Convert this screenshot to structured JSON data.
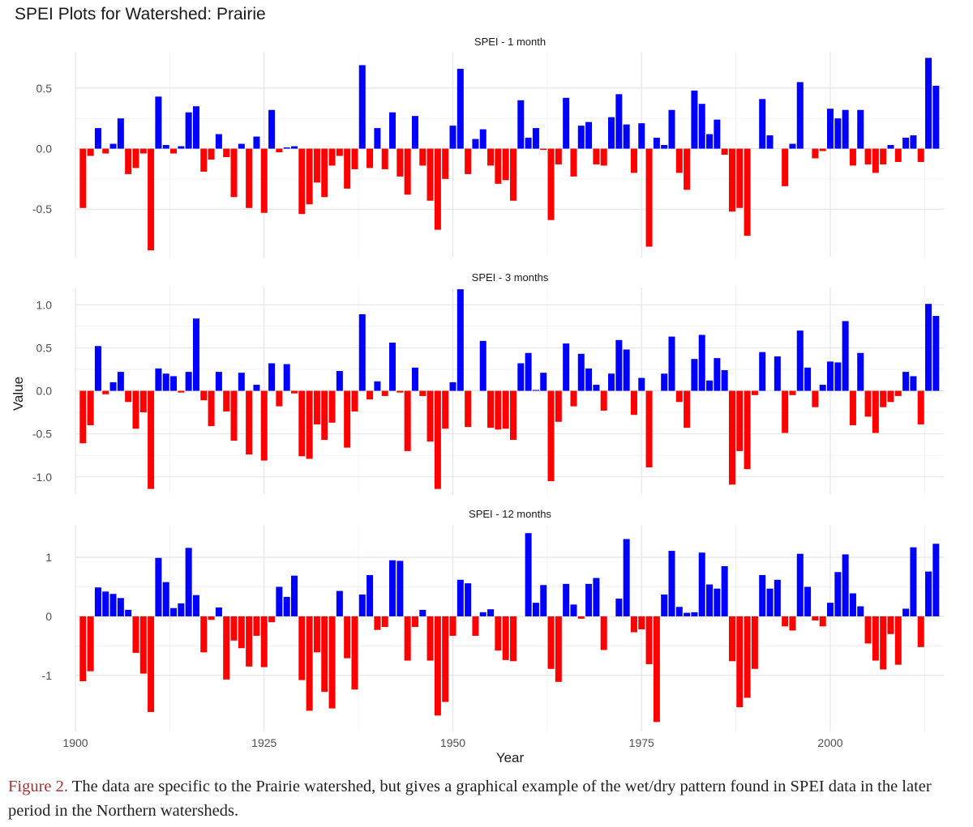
{
  "figure": {
    "title": "SPEI Plots for Watershed: Prairie",
    "ylabel": "Value",
    "xlabel": "Year",
    "x_ticks": [
      "1900",
      "1925",
      "1950",
      "1975",
      "2000"
    ],
    "positive_color": "#0000ff",
    "negative_color": "#ff0000"
  },
  "chart_data": [
    {
      "type": "bar",
      "title": "SPEI - 1 month",
      "xlabel": "Year",
      "ylabel": "Value",
      "ylim": [
        -0.9,
        0.8
      ],
      "y_ticks": [
        "0.5",
        "0.0",
        "-0.5"
      ],
      "y_tick_values": [
        0.5,
        0.0,
        -0.5
      ],
      "years_start": 1901,
      "values": [
        -0.49,
        -0.06,
        0.17,
        -0.04,
        0.04,
        0.25,
        -0.21,
        -0.16,
        -0.04,
        -0.84,
        0.43,
        0.03,
        -0.04,
        0.02,
        0.3,
        0.35,
        -0.19,
        -0.09,
        0.12,
        -0.07,
        -0.4,
        0.04,
        -0.49,
        0.1,
        -0.53,
        0.32,
        -0.03,
        0.01,
        0.02,
        -0.54,
        -0.46,
        -0.28,
        -0.4,
        -0.14,
        -0.06,
        -0.33,
        -0.17,
        0.69,
        -0.16,
        0.17,
        -0.17,
        0.3,
        -0.23,
        -0.38,
        0.27,
        -0.14,
        -0.43,
        -0.67,
        -0.25,
        0.19,
        0.66,
        -0.21,
        0.08,
        0.16,
        -0.14,
        -0.29,
        -0.26,
        -0.43,
        0.4,
        0.09,
        0.17,
        -0.01,
        -0.59,
        -0.13,
        0.42,
        -0.23,
        0.19,
        0.22,
        -0.13,
        -0.14,
        0.26,
        0.45,
        0.2,
        -0.2,
        0.21,
        -0.81,
        0.09,
        0.03,
        0.32,
        -0.2,
        -0.34,
        0.48,
        0.37,
        0.12,
        0.24,
        -0.05,
        -0.52,
        -0.49,
        -0.72,
        0.0,
        0.41,
        0.11,
        0.0,
        -0.31,
        0.04,
        0.55,
        0.0,
        -0.08,
        -0.02,
        0.33,
        0.25,
        0.32,
        -0.14,
        0.32,
        -0.13,
        -0.2,
        -0.13,
        0.03,
        -0.11,
        0.09,
        0.11,
        -0.11,
        0.75,
        0.52
      ]
    },
    {
      "type": "bar",
      "title": "SPEI - 3 months",
      "xlabel": "Year",
      "ylabel": "Value",
      "ylim": [
        -1.2,
        1.2
      ],
      "y_ticks": [
        "1.0",
        "0.5",
        "0.0",
        "-0.5",
        "-1.0"
      ],
      "y_tick_values": [
        1.0,
        0.5,
        0.0,
        -0.5,
        -1.0
      ],
      "years_start": 1901,
      "values": [
        -0.61,
        -0.4,
        0.52,
        -0.04,
        0.1,
        0.22,
        -0.13,
        -0.44,
        -0.25,
        -1.14,
        0.26,
        0.2,
        0.17,
        -0.02,
        0.22,
        0.84,
        -0.11,
        -0.41,
        0.22,
        -0.24,
        -0.58,
        0.21,
        -0.74,
        0.07,
        -0.81,
        0.32,
        -0.18,
        0.31,
        -0.03,
        -0.76,
        -0.79,
        -0.39,
        -0.57,
        -0.37,
        0.23,
        -0.66,
        -0.24,
        0.89,
        -0.1,
        0.11,
        -0.06,
        0.56,
        -0.02,
        -0.7,
        0.27,
        -0.06,
        -0.59,
        -1.14,
        -0.44,
        0.1,
        1.18,
        -0.42,
        0.0,
        0.58,
        -0.43,
        -0.45,
        -0.44,
        -0.57,
        0.32,
        0.44,
        0.01,
        0.21,
        -1.05,
        -0.36,
        0.55,
        -0.18,
        0.43,
        0.26,
        0.07,
        -0.23,
        0.2,
        0.59,
        0.48,
        -0.28,
        0.15,
        -0.89,
        0.0,
        0.2,
        0.63,
        -0.13,
        -0.43,
        0.37,
        0.65,
        0.12,
        0.38,
        0.24,
        -1.09,
        -0.7,
        -0.91,
        -0.05,
        0.45,
        0.0,
        0.4,
        -0.49,
        -0.05,
        0.7,
        0.27,
        -0.19,
        0.07,
        0.34,
        0.33,
        0.81,
        -0.4,
        0.44,
        -0.3,
        -0.49,
        -0.19,
        -0.13,
        -0.06,
        0.22,
        0.17,
        -0.39,
        1.01,
        0.87
      ]
    },
    {
      "type": "bar",
      "title": "SPEI - 12 months",
      "xlabel": "Year",
      "ylabel": "Value",
      "ylim": [
        -1.95,
        1.55
      ],
      "y_ticks": [
        "1",
        "0",
        "-1"
      ],
      "y_tick_values": [
        1,
        0,
        -1
      ],
      "years_start": 1901,
      "values": [
        -1.1,
        -0.93,
        0.49,
        0.42,
        0.38,
        0.31,
        0.11,
        -0.62,
        -0.97,
        -1.62,
        0.99,
        0.58,
        0.14,
        0.22,
        1.16,
        0.36,
        -0.61,
        -0.06,
        0.15,
        -1.07,
        -0.41,
        -0.54,
        -0.85,
        -0.33,
        -0.86,
        -0.1,
        0.5,
        0.33,
        0.69,
        -1.08,
        -1.6,
        -0.61,
        -1.28,
        -1.56,
        0.43,
        -0.71,
        -1.24,
        0.37,
        0.7,
        -0.23,
        -0.18,
        0.95,
        0.94,
        -0.75,
        -0.18,
        0.11,
        -0.75,
        -1.68,
        -1.45,
        -0.33,
        0.62,
        0.56,
        -0.33,
        0.07,
        0.12,
        -0.58,
        -0.74,
        -0.76,
        0.0,
        1.41,
        0.23,
        0.53,
        -0.89,
        -1.11,
        0.55,
        0.2,
        -0.04,
        0.55,
        0.65,
        -0.57,
        0.0,
        0.3,
        1.31,
        -0.27,
        -0.22,
        -0.81,
        -1.79,
        0.37,
        1.11,
        0.16,
        0.06,
        0.07,
        1.08,
        0.54,
        0.47,
        0.85,
        -0.76,
        -1.54,
        -1.38,
        -0.89,
        0.7,
        0.47,
        0.62,
        -0.17,
        -0.24,
        1.06,
        0.5,
        -0.07,
        -0.17,
        0.23,
        0.75,
        1.05,
        0.39,
        0.17,
        -0.46,
        -0.75,
        -0.9,
        -0.3,
        -0.82,
        0.13,
        1.17,
        -0.52,
        0.76,
        1.23
      ]
    }
  ],
  "caption": {
    "label": "Figure 2.",
    "text": "The data are specific to the Prairie watershed, but gives a graphical example of the wet/dry pattern found in SPEI data in the later period in the Northern watersheds."
  }
}
